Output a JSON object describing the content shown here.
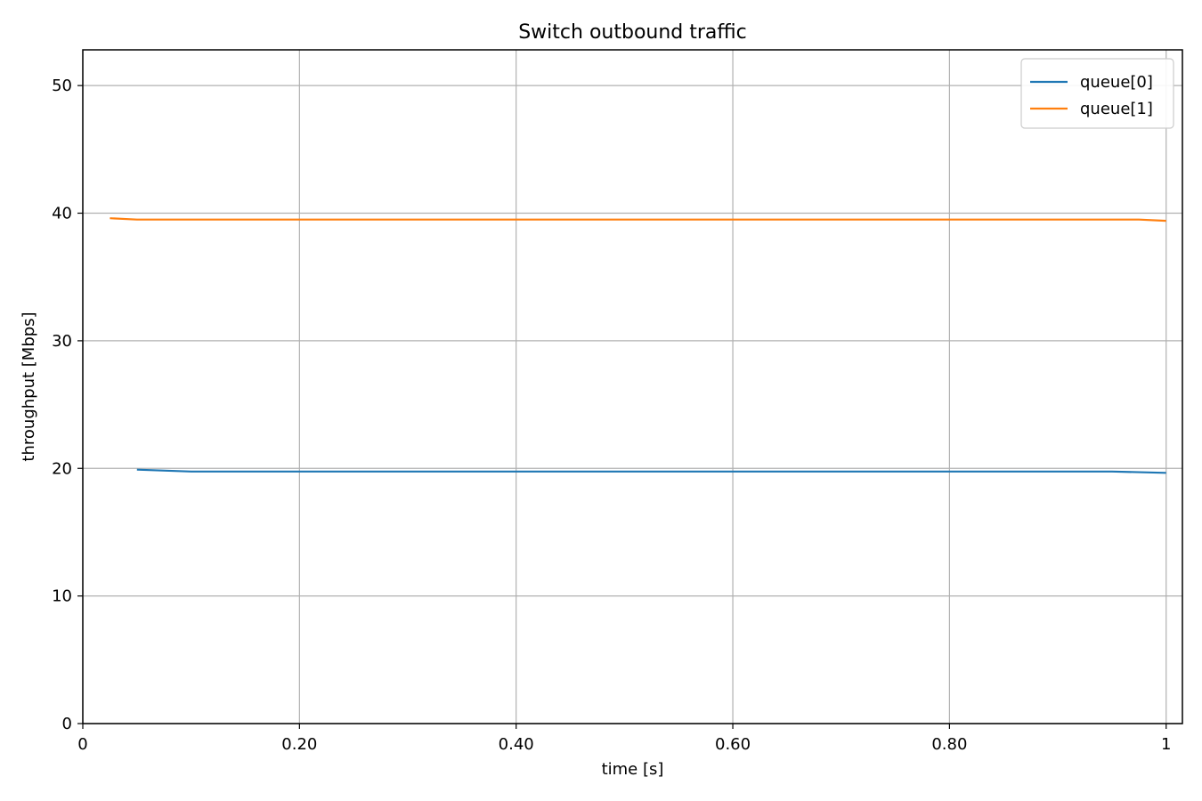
{
  "chart_data": {
    "type": "line",
    "title": "Switch outbound traffic",
    "xlabel": "time [s]",
    "ylabel": "throughput [Mbps]",
    "xlim": [
      0,
      1.015
    ],
    "ylim": [
      0,
      52.8
    ],
    "grid": true,
    "legend_position": "top-right",
    "x_ticks": [
      {
        "value": 0,
        "label": "0"
      },
      {
        "value": 0.2,
        "label": "0.20"
      },
      {
        "value": 0.4,
        "label": "0.40"
      },
      {
        "value": 0.6,
        "label": "0.60"
      },
      {
        "value": 0.8,
        "label": "0.80"
      },
      {
        "value": 1.0,
        "label": "1"
      }
    ],
    "y_ticks": [
      {
        "value": 0,
        "label": "0"
      },
      {
        "value": 10,
        "label": "10"
      },
      {
        "value": 20,
        "label": "20"
      },
      {
        "value": 30,
        "label": "30"
      },
      {
        "value": 40,
        "label": "40"
      },
      {
        "value": 50,
        "label": "50"
      }
    ],
    "series": [
      {
        "name": "queue[0]",
        "color": "#1f77b4",
        "x": [
          0.05,
          0.1,
          0.2,
          0.3,
          0.4,
          0.5,
          0.6,
          0.7,
          0.8,
          0.9,
          0.95,
          1.0
        ],
        "y": [
          19.9,
          19.75,
          19.75,
          19.75,
          19.75,
          19.75,
          19.75,
          19.75,
          19.75,
          19.75,
          19.75,
          19.65
        ]
      },
      {
        "name": "queue[1]",
        "color": "#ff7f0e",
        "x": [
          0.025,
          0.05,
          0.1,
          0.2,
          0.3,
          0.4,
          0.5,
          0.6,
          0.7,
          0.8,
          0.9,
          0.975,
          1.0
        ],
        "y": [
          39.6,
          39.5,
          39.5,
          39.5,
          39.5,
          39.5,
          39.5,
          39.5,
          39.5,
          39.5,
          39.5,
          39.5,
          39.4
        ]
      }
    ]
  }
}
